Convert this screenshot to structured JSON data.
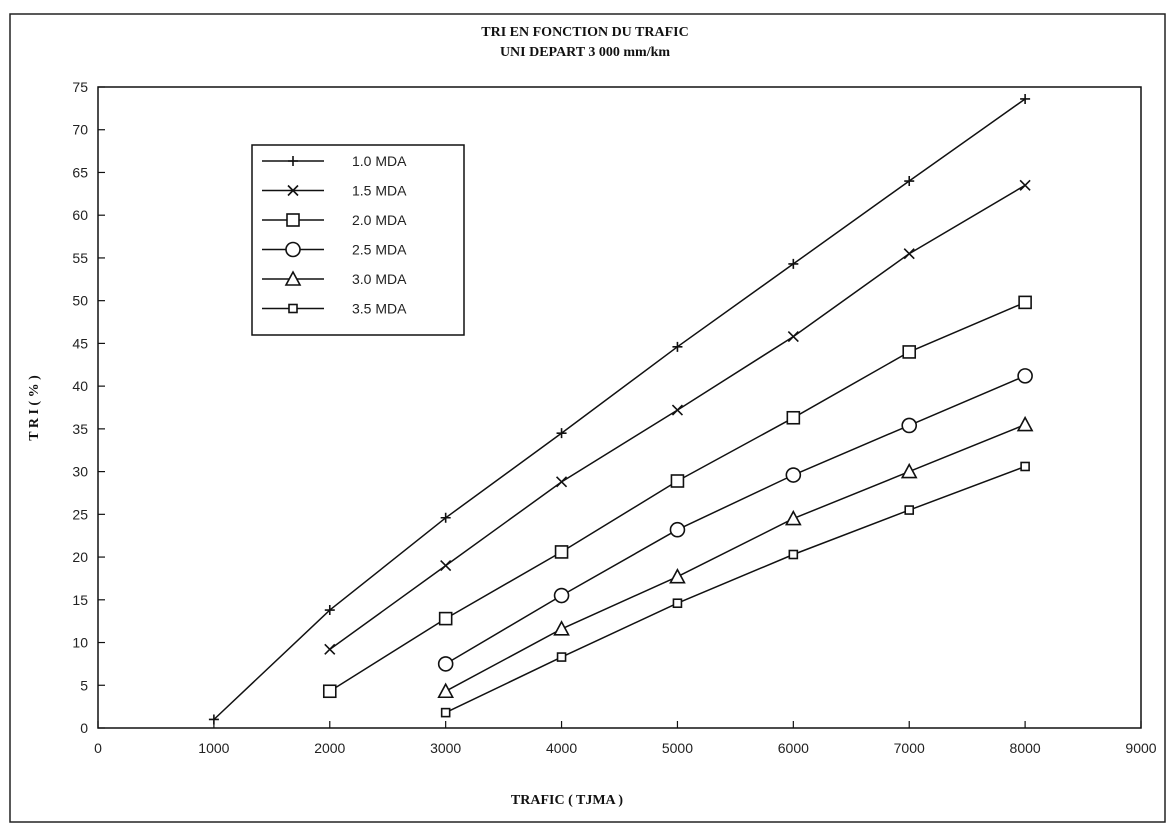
{
  "chart_data": {
    "type": "line",
    "title": "TRI EN FONCTION DU TRAFIC",
    "subtitle": "UNI DEPART 3 000 mm/km",
    "xlabel": "TRAFIC ( TJMA )",
    "ylabel": "T R I ( % )",
    "xlim": [
      0,
      9000
    ],
    "ylim": [
      0,
      75
    ],
    "x_ticks": [
      0,
      1000,
      2000,
      3000,
      4000,
      5000,
      6000,
      7000,
      8000,
      9000
    ],
    "y_ticks": [
      0,
      5,
      10,
      15,
      20,
      25,
      30,
      35,
      40,
      45,
      50,
      55,
      60,
      65,
      70,
      75
    ],
    "grid": false,
    "legend_position": "top-left",
    "series": [
      {
        "name": "1.0 MDA",
        "marker": "plus",
        "x": [
          1000,
          2000,
          3000,
          4000,
          5000,
          6000,
          7000,
          8000
        ],
        "values": [
          1.0,
          13.8,
          24.6,
          34.5,
          44.6,
          54.3,
          64.0,
          73.6
        ]
      },
      {
        "name": "1.5 MDA",
        "marker": "cross",
        "x": [
          2000,
          3000,
          4000,
          5000,
          6000,
          7000,
          8000
        ],
        "values": [
          9.2,
          19.0,
          28.8,
          37.2,
          45.8,
          55.5,
          63.5
        ]
      },
      {
        "name": "2.0 MDA",
        "marker": "square",
        "x": [
          2000,
          3000,
          4000,
          5000,
          6000,
          7000,
          8000
        ],
        "values": [
          4.3,
          12.8,
          20.6,
          28.9,
          36.3,
          44.0,
          49.8
        ]
      },
      {
        "name": "2.5 MDA",
        "marker": "circle",
        "x": [
          3000,
          4000,
          5000,
          6000,
          7000,
          8000
        ],
        "values": [
          7.5,
          15.5,
          23.2,
          29.6,
          35.4,
          41.2
        ]
      },
      {
        "name": "3.0 MDA",
        "marker": "triangle",
        "x": [
          3000,
          4000,
          5000,
          6000,
          7000,
          8000
        ],
        "values": [
          4.3,
          11.6,
          17.7,
          24.5,
          30.0,
          35.5
        ]
      },
      {
        "name": "3.5 MDA",
        "marker": "small-square",
        "x": [
          3000,
          4000,
          5000,
          6000,
          7000,
          8000
        ],
        "values": [
          1.8,
          8.3,
          14.6,
          20.3,
          25.5,
          30.6
        ]
      }
    ]
  }
}
